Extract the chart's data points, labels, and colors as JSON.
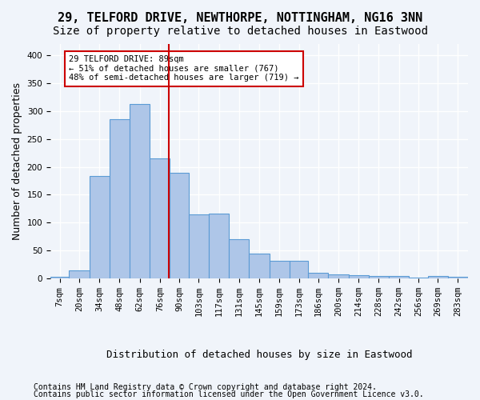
{
  "title": "29, TELFORD DRIVE, NEWTHORPE, NOTTINGHAM, NG16 3NN",
  "subtitle": "Size of property relative to detached houses in Eastwood",
  "xlabel": "Distribution of detached houses by size in Eastwood",
  "ylabel": "Number of detached properties",
  "bar_labels": [
    "7sqm",
    "20sqm",
    "34sqm",
    "48sqm",
    "62sqm",
    "76sqm",
    "90sqm",
    "103sqm",
    "117sqm",
    "131sqm",
    "145sqm",
    "159sqm",
    "173sqm",
    "186sqm",
    "200sqm",
    "214sqm",
    "228sqm",
    "242sqm",
    "256sqm",
    "269sqm",
    "283sqm"
  ],
  "bar_values": [
    3,
    14,
    184,
    286,
    313,
    215,
    190,
    115,
    116,
    70,
    45,
    32,
    32,
    10,
    7,
    6,
    5,
    5,
    1,
    4,
    3
  ],
  "bin_edges": [
    7,
    20,
    34,
    48,
    62,
    76,
    90,
    103,
    117,
    131,
    145,
    159,
    173,
    186,
    200,
    214,
    228,
    242,
    256,
    269,
    283
  ],
  "bar_color": "#aec6e8",
  "bar_edge_color": "#5b9bd5",
  "property_line_x": 89,
  "property_line_color": "#cc0000",
  "annotation_text": "29 TELFORD DRIVE: 89sqm\n← 51% of detached houses are smaller (767)\n48% of semi-detached houses are larger (719) →",
  "annotation_box_color": "#ffffff",
  "annotation_box_edge_color": "#cc0000",
  "ylim": [
    0,
    420
  ],
  "yticks": [
    0,
    50,
    100,
    150,
    200,
    250,
    300,
    350,
    400
  ],
  "footer_line1": "Contains HM Land Registry data © Crown copyright and database right 2024.",
  "footer_line2": "Contains public sector information licensed under the Open Government Licence v3.0.",
  "background_color": "#f0f4fa",
  "grid_color": "#ffffff",
  "title_fontsize": 11,
  "subtitle_fontsize": 10,
  "axis_label_fontsize": 9,
  "tick_fontsize": 7.5,
  "footer_fontsize": 7
}
